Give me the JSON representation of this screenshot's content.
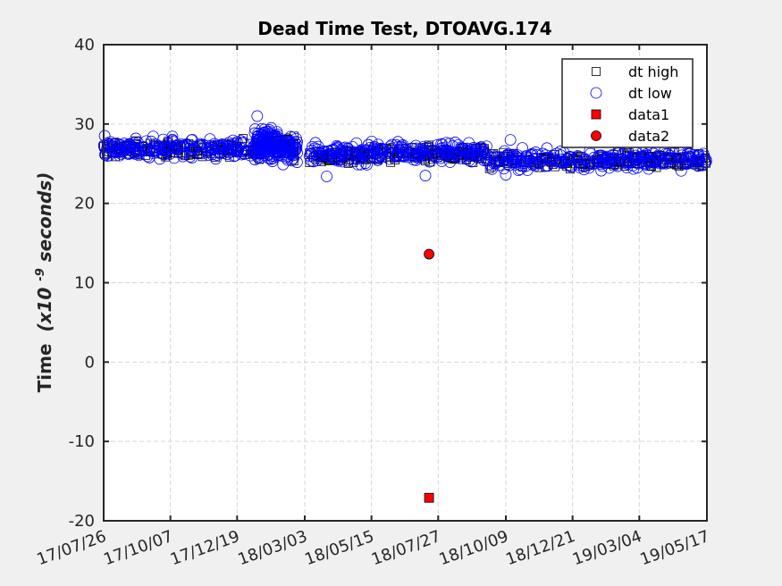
{
  "chart_data": {
    "type": "scatter",
    "title": "Dead Time Test, DTOAVG.174",
    "ylabel_main": "Time",
    "ylabel_unit_pre": "(x10",
    "ylabel_unit_exp": "-9",
    "ylabel_unit_post": " seconds)",
    "xlabel": "",
    "x_start": "17/07/26",
    "x_end": "19/05/17",
    "xlim_days": [
      0,
      660
    ],
    "ylim": [
      -20,
      40
    ],
    "xticks": [
      {
        "label": "17/07/26",
        "day": 0
      },
      {
        "label": "17/10/07",
        "day": 73
      },
      {
        "label": "17/12/19",
        "day": 146
      },
      {
        "label": "18/03/03",
        "day": 220
      },
      {
        "label": "18/05/15",
        "day": 293
      },
      {
        "label": "18/07/27",
        "day": 366
      },
      {
        "label": "18/10/09",
        "day": 440
      },
      {
        "label": "18/12/21",
        "day": 513
      },
      {
        "label": "19/03/04",
        "day": 586
      },
      {
        "label": "19/05/17",
        "day": 660
      }
    ],
    "yticks": [
      -20,
      -10,
      0,
      10,
      20,
      30,
      40
    ],
    "grid": true,
    "legend_position": "top-right",
    "series": [
      {
        "name": "dt high",
        "marker": "square-open",
        "color": "#000000",
        "segments": [
          {
            "from": 0,
            "to": 170,
            "mean": 26.8,
            "spread": 0.7,
            "n": 160
          },
          {
            "from": 170,
            "to": 210,
            "mean": 27.0,
            "spread": 0.9,
            "n": 70
          },
          {
            "from": 225,
            "to": 290,
            "mean": 26.0,
            "spread": 0.6,
            "n": 70
          },
          {
            "from": 290,
            "to": 420,
            "mean": 26.2,
            "spread": 0.6,
            "n": 130
          },
          {
            "from": 420,
            "to": 660,
            "mean": 25.4,
            "spread": 0.6,
            "n": 220
          }
        ]
      },
      {
        "name": "dt low",
        "marker": "circle-open",
        "color": "#0000ff",
        "segments": [
          {
            "from": 0,
            "to": 165,
            "mean": 26.9,
            "spread": 0.9,
            "n": 200
          },
          {
            "from": 165,
            "to": 190,
            "mean": 27.3,
            "spread": 1.4,
            "n": 130
          },
          {
            "from": 190,
            "to": 212,
            "mean": 27.0,
            "spread": 1.1,
            "n": 60
          },
          {
            "from": 225,
            "to": 290,
            "mean": 26.2,
            "spread": 0.9,
            "n": 90
          },
          {
            "from": 290,
            "to": 420,
            "mean": 26.4,
            "spread": 0.8,
            "n": 160
          },
          {
            "from": 420,
            "to": 660,
            "mean": 25.5,
            "spread": 0.8,
            "n": 260
          }
        ],
        "outliers": [
          [
            168,
            31.0
          ],
          [
            244,
            23.4
          ],
          [
            352,
            23.5
          ],
          [
            440,
            23.6
          ],
          [
            445,
            28.0
          ]
        ]
      },
      {
        "name": "data1",
        "marker": "square-filled",
        "color": "#ff0000",
        "points": [
          [
            356,
            -17.1
          ]
        ]
      },
      {
        "name": "data2",
        "marker": "circle-filled",
        "color": "#ff0000",
        "points": [
          [
            356,
            13.6
          ]
        ]
      }
    ]
  }
}
